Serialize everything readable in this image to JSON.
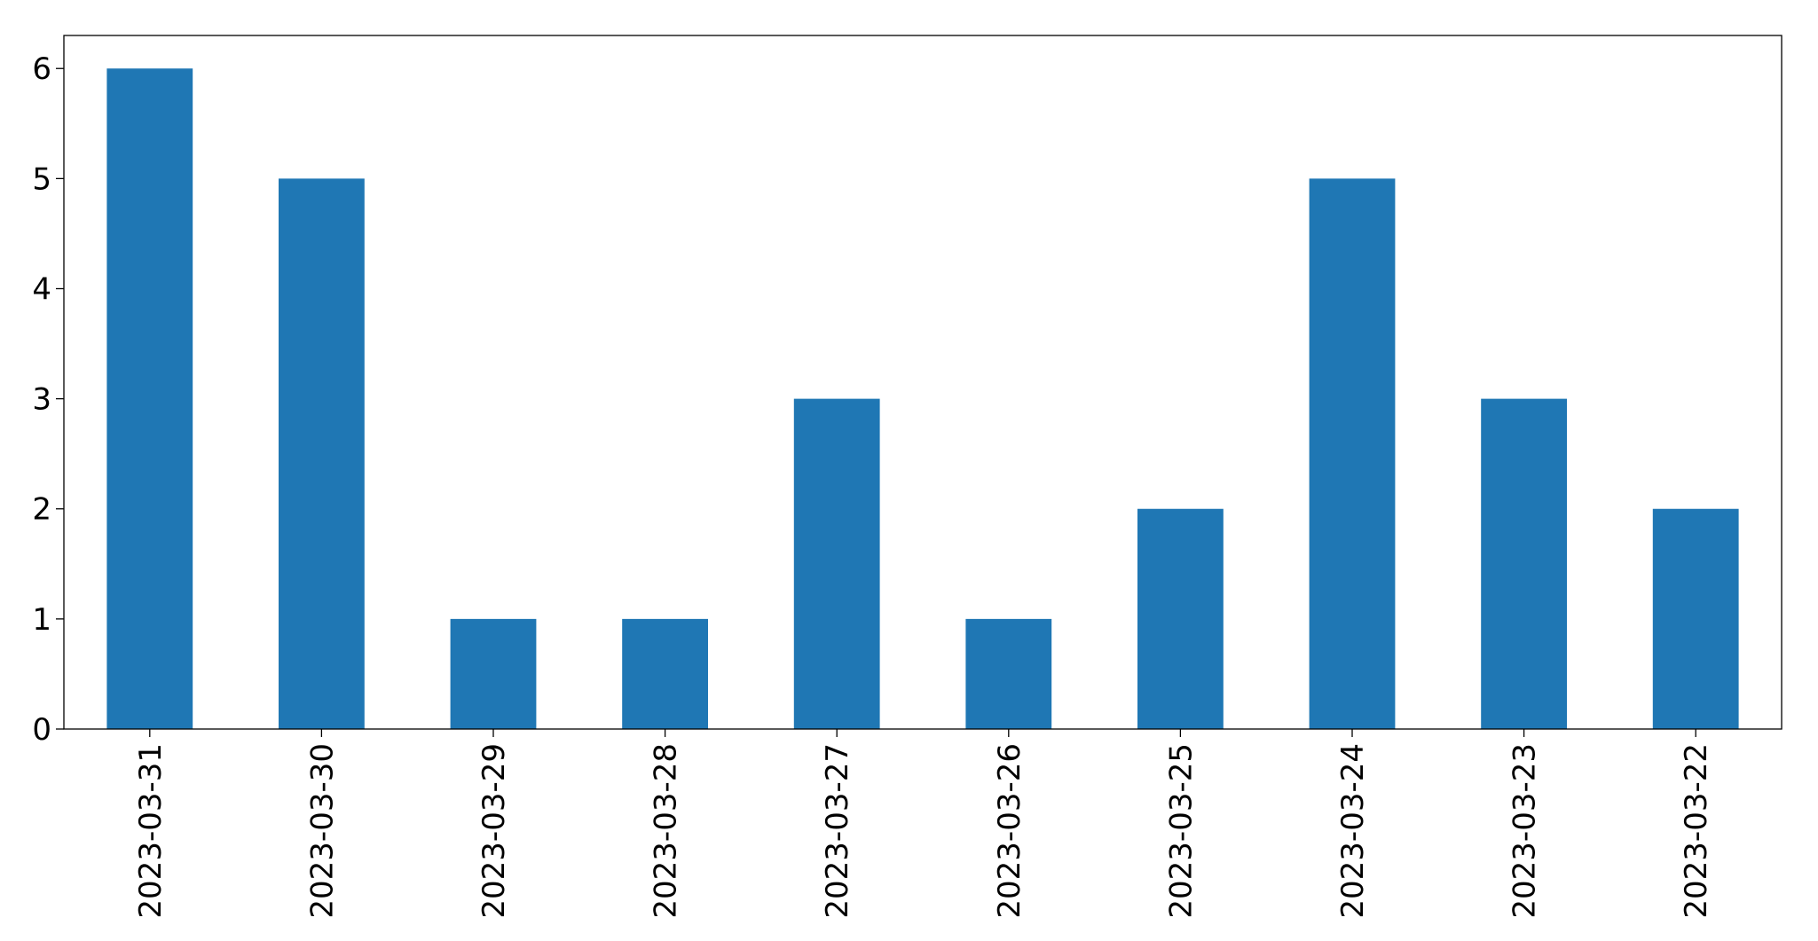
{
  "chart_data": {
    "type": "bar",
    "categories": [
      "2023-03-31",
      "2023-03-30",
      "2023-03-29",
      "2023-03-28",
      "2023-03-27",
      "2023-03-26",
      "2023-03-25",
      "2023-03-24",
      "2023-03-23",
      "2023-03-22"
    ],
    "values": [
      6,
      5,
      1,
      1,
      3,
      1,
      2,
      5,
      3,
      2
    ],
    "color": "#1f77b4",
    "ylim": [
      0,
      6.3
    ],
    "yticks": [
      0,
      1,
      2,
      3,
      4,
      5,
      6
    ],
    "grid": false
  }
}
